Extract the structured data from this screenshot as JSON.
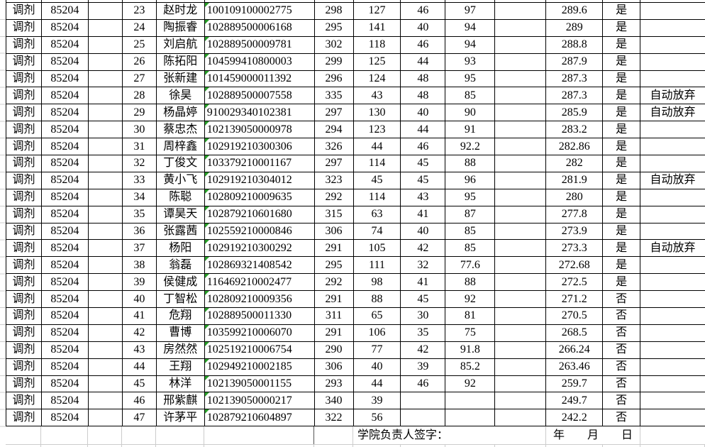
{
  "colors": {
    "cell_border": "#000000",
    "sheet_gridline": "#cccccc",
    "number_as_text_triangle": "#2aa02a",
    "background": "#ffffff",
    "text": "#000000"
  },
  "table": {
    "rows": [
      [
        "调剂",
        "85204",
        "",
        "23",
        "赵时龙",
        "100109100002775",
        "298",
        "127",
        "46",
        "97",
        "",
        "289.6",
        "是",
        ""
      ],
      [
        "调剂",
        "85204",
        "",
        "24",
        "陶振睿",
        "102889500006168",
        "295",
        "141",
        "40",
        "94",
        "",
        "289",
        "是",
        ""
      ],
      [
        "调剂",
        "85204",
        "",
        "25",
        "刘启航",
        "102889500009781",
        "302",
        "118",
        "46",
        "94",
        "",
        "288.8",
        "是",
        ""
      ],
      [
        "调剂",
        "85204",
        "",
        "26",
        "陈拓阳",
        "104599410800003",
        "299",
        "125",
        "44",
        "93",
        "",
        "287.9",
        "是",
        ""
      ],
      [
        "调剂",
        "85204",
        "",
        "27",
        "张新建",
        "101459000011392",
        "296",
        "124",
        "48",
        "95",
        "",
        "287.3",
        "是",
        ""
      ],
      [
        "调剂",
        "85204",
        "",
        "28",
        "徐昊",
        "102889500007558",
        "335",
        "43",
        "48",
        "85",
        "",
        "287.3",
        "是",
        "自动放弃"
      ],
      [
        "调剂",
        "85204",
        "",
        "29",
        "杨晶婷",
        "910029340102381",
        "297",
        "130",
        "40",
        "90",
        "",
        "285.9",
        "是",
        "自动放弃"
      ],
      [
        "调剂",
        "85204",
        "",
        "30",
        "蔡忠杰",
        "102139050000978",
        "294",
        "123",
        "44",
        "91",
        "",
        "283.2",
        "是",
        ""
      ],
      [
        "调剂",
        "85204",
        "",
        "31",
        "周梓鑫",
        "102919210300306",
        "326",
        "44",
        "46",
        "92.2",
        "",
        "282.86",
        "是",
        ""
      ],
      [
        "调剂",
        "85204",
        "",
        "32",
        "丁俊文",
        "103379210001167",
        "297",
        "114",
        "45",
        "88",
        "",
        "282",
        "是",
        ""
      ],
      [
        "调剂",
        "85204",
        "",
        "33",
        "黄小飞",
        "102919210304012",
        "323",
        "45",
        "45",
        "96",
        "",
        "281.9",
        "是",
        "自动放弃"
      ],
      [
        "调剂",
        "85204",
        "",
        "34",
        "陈聪",
        "102809210009635",
        "292",
        "114",
        "43",
        "95",
        "",
        "280",
        "是",
        ""
      ],
      [
        "调剂",
        "85204",
        "",
        "35",
        "谭昊天",
        "102879210601680",
        "315",
        "63",
        "41",
        "87",
        "",
        "277.8",
        "是",
        ""
      ],
      [
        "调剂",
        "85204",
        "",
        "36",
        "张露茜",
        "102559210000846",
        "306",
        "74",
        "40",
        "85",
        "",
        "273.9",
        "是",
        ""
      ],
      [
        "调剂",
        "85204",
        "",
        "37",
        "杨阳",
        "102919210300292",
        "291",
        "105",
        "42",
        "85",
        "",
        "273.3",
        "是",
        "自动放弃"
      ],
      [
        "调剂",
        "85204",
        "",
        "38",
        "翁磊",
        "102869321408542",
        "295",
        "111",
        "32",
        "77.6",
        "",
        "272.68",
        "是",
        ""
      ],
      [
        "调剂",
        "85204",
        "",
        "39",
        "侯健成",
        "116469210002477",
        "292",
        "98",
        "41",
        "88",
        "",
        "272.5",
        "是",
        ""
      ],
      [
        "调剂",
        "85204",
        "",
        "40",
        "丁智松",
        "102809210009356",
        "291",
        "88",
        "45",
        "92",
        "",
        "271.2",
        "否",
        ""
      ],
      [
        "调剂",
        "85204",
        "",
        "41",
        "危翔",
        "102889500011330",
        "311",
        "65",
        "30",
        "81",
        "",
        "270.5",
        "否",
        ""
      ],
      [
        "调剂",
        "85204",
        "",
        "42",
        "曹博",
        "103599210006070",
        "291",
        "106",
        "35",
        "75",
        "",
        "268.5",
        "否",
        ""
      ],
      [
        "调剂",
        "85204",
        "",
        "43",
        "房然然",
        "102519210006754",
        "290",
        "77",
        "42",
        "91.8",
        "",
        "266.24",
        "否",
        ""
      ],
      [
        "调剂",
        "85204",
        "",
        "44",
        "王翔",
        "102949210002185",
        "306",
        "40",
        "39",
        "85.2",
        "",
        "263.46",
        "否",
        ""
      ],
      [
        "调剂",
        "85204",
        "",
        "45",
        "林洋",
        "102139050001155",
        "293",
        "44",
        "46",
        "92",
        "",
        "259.7",
        "否",
        ""
      ],
      [
        "调剂",
        "85204",
        "",
        "46",
        "邢紫麒",
        "102139050000217",
        "340",
        "39",
        "",
        "",
        "",
        "249.7",
        "否",
        ""
      ],
      [
        "调剂",
        "85204",
        "",
        "47",
        "许茅平",
        "102879210604897",
        "322",
        "56",
        "",
        "",
        "",
        "242.2",
        "否",
        ""
      ]
    ]
  },
  "footer": {
    "sign_label": "学院负责人签字：",
    "year": "年",
    "month": "月",
    "day": "日"
  }
}
